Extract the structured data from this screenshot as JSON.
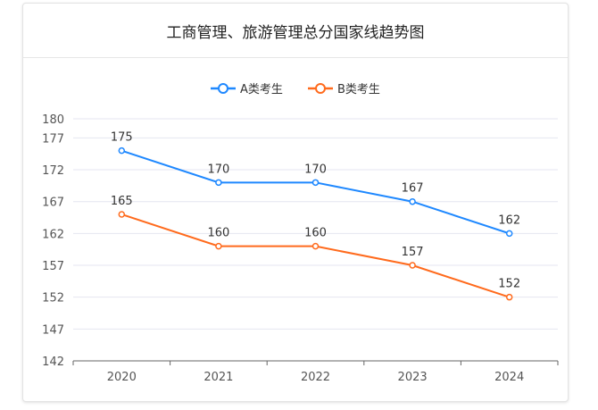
{
  "chart_data": {
    "type": "line",
    "title": "工商管理、旅游管理总分国家线趋势图",
    "categories": [
      "2020",
      "2021",
      "2022",
      "2023",
      "2024"
    ],
    "yticks": [
      142,
      147,
      152,
      157,
      162,
      167,
      172,
      177,
      180
    ],
    "ylim": [
      142,
      180
    ],
    "grid": true,
    "legend_position": "top",
    "series": [
      {
        "name": "A类考生",
        "values": [
          175,
          170,
          170,
          167,
          162
        ],
        "color": "#1e88ff"
      },
      {
        "name": "B类考生",
        "values": [
          165,
          160,
          160,
          157,
          152
        ],
        "color": "#ff6a1c"
      }
    ]
  }
}
